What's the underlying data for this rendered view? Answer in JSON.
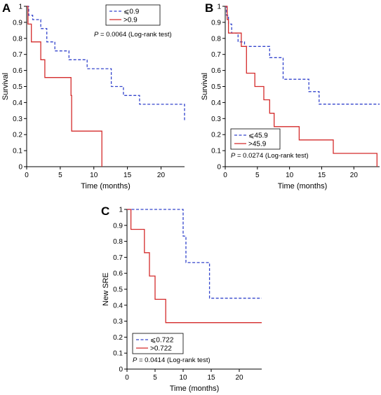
{
  "chart_data": [
    {
      "panel_label": "A",
      "type": "line",
      "xlabel": "Time (months)",
      "ylabel": "Survival",
      "xlim": [
        0,
        23.5
      ],
      "ylim": [
        0,
        1
      ],
      "xticks": [
        "0",
        "5",
        "10",
        "15",
        "20"
      ],
      "yticks": [
        "0",
        "0.1",
        "0.2",
        "0.3",
        "0.4",
        "0.5",
        "0.6",
        "0.7",
        "0.8",
        "0.9",
        "1"
      ],
      "legend_position": "top-right",
      "annotation": {
        "prefix": "P",
        "text": " = 0.0064 (Log-rank test)"
      },
      "series": [
        {
          "name": "⩽0.9",
          "color": "#3344cc",
          "style": "dashed",
          "x": [
            0,
            0.3,
            0.9,
            2.1,
            3.0,
            4.2,
            6.3,
            9.0,
            12.6,
            14.4,
            16.8,
            23.0,
            23.5
          ],
          "y": [
            1,
            0.944,
            0.917,
            0.861,
            0.778,
            0.722,
            0.667,
            0.611,
            0.5,
            0.444,
            0.389,
            0.389,
            0.28
          ]
        },
        {
          "name": ">0.9",
          "color": "#d42b2b",
          "style": "solid",
          "x": [
            0,
            0.2,
            0.7,
            2.1,
            2.7,
            5.8,
            6.6,
            6.7,
            11.2
          ],
          "y": [
            1,
            0.889,
            0.778,
            0.667,
            0.556,
            0.556,
            0.444,
            0.222,
            0
          ]
        }
      ]
    },
    {
      "panel_label": "B",
      "type": "line",
      "xlabel": "Time (months)",
      "ylabel": "Survival",
      "xlim": [
        0,
        24
      ],
      "ylim": [
        0,
        1
      ],
      "xticks": [
        "0",
        "5",
        "10",
        "15",
        "20"
      ],
      "yticks": [
        "0",
        "0.1",
        "0.2",
        "0.3",
        "0.4",
        "0.5",
        "0.6",
        "0.7",
        "0.8",
        "0.9",
        "1"
      ],
      "legend_position": "bottom-left",
      "annotation": {
        "prefix": "P",
        "text": " = 0.0274 (Log-rank test)"
      },
      "series": [
        {
          "name": "⩽45.9",
          "color": "#3344cc",
          "style": "dashed",
          "x": [
            0,
            0.2,
            0.5,
            1.0,
            2.0,
            3.0,
            3.9,
            5.9,
            6.9,
            8.0,
            9.0,
            13.0,
            14.6,
            24
          ],
          "y": [
            1,
            0.944,
            0.889,
            0.833,
            0.778,
            0.75,
            0.75,
            0.75,
            0.68,
            0.68,
            0.545,
            0.468,
            0.39,
            0.39
          ]
        },
        {
          "name": ">45.9",
          "color": "#d42b2b",
          "style": "solid",
          "x": [
            0,
            0.3,
            0.5,
            2.5,
            3.3,
            4.6,
            6.0,
            6.9,
            7.6,
            8.0,
            11.5,
            16.8,
            23.6
          ],
          "y": [
            1,
            0.917,
            0.833,
            0.75,
            0.583,
            0.5,
            0.417,
            0.333,
            0.25,
            0.25,
            0.167,
            0.083,
            0
          ]
        }
      ]
    },
    {
      "panel_label": "C",
      "type": "line",
      "xlabel": "Time (months)",
      "ylabel": "New SRE",
      "xlim": [
        0,
        24
      ],
      "ylim": [
        0,
        1
      ],
      "xticks": [
        "0",
        "5",
        "10",
        "15",
        "20"
      ],
      "yticks": [
        "0",
        "0.1",
        "0.2",
        "0.3",
        "0.4",
        "0.5",
        "0.6",
        "0.7",
        "0.8",
        "0.9",
        "1"
      ],
      "legend_position": "bottom-left",
      "annotation": {
        "prefix": "P",
        "text": " = 0.0414 (Log-rank test)"
      },
      "series": [
        {
          "name": "⩽0.722",
          "color": "#3344cc",
          "style": "dashed",
          "x": [
            0,
            9.2,
            10.0,
            10.5,
            14.7,
            24
          ],
          "y": [
            1,
            1,
            0.833,
            0.667,
            0.444,
            0.444
          ]
        },
        {
          "name": ">0.722",
          "color": "#d42b2b",
          "style": "solid",
          "x": [
            0,
            0.7,
            3.1,
            4.0,
            5.0,
            6.9,
            24
          ],
          "y": [
            1,
            0.875,
            0.729,
            0.583,
            0.437,
            0.291,
            0.291
          ]
        }
      ]
    }
  ]
}
